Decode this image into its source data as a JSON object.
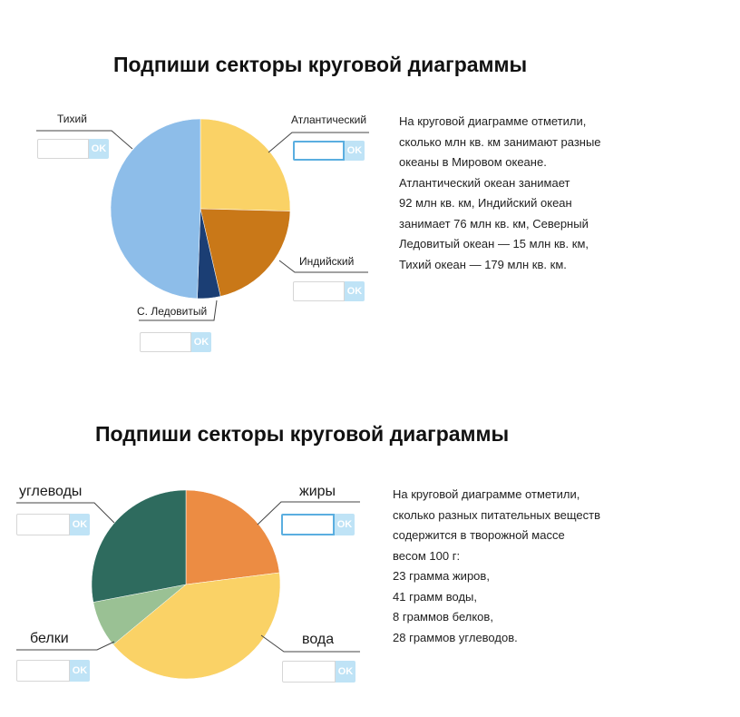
{
  "tasks": [
    {
      "title": "Подпиши секторы круговой диаграммы",
      "labels": {
        "pacific": "Тихий",
        "atlantic": "Атлантический",
        "indian": "Индийский",
        "arctic": "С. Ледовитый"
      },
      "ok_label": "OK",
      "description_lines": [
        "На круговой диаграмме отметили,",
        "сколько млн кв. км занимают разные",
        "океаны в Мировом океане.",
        "Атлантический океан занимает",
        "92 млн кв. км, Индийский океан",
        "занимает 76 млн кв. км, Северный",
        "Ледовитый океан — 15 млн кв. км,",
        "Тихий океан — 179 млн кв. км."
      ]
    },
    {
      "title": "Подпиши секторы круговой диаграммы",
      "labels": {
        "carbs": "углеводы",
        "fats": "жиры",
        "proteins": "белки",
        "water": "вода"
      },
      "ok_label": "OK",
      "description_lines": [
        "На круговой диаграмме отметили,",
        "сколько разных питательных веществ",
        "содержится в творожной массе",
        "весом 100 г:",
        "23 грамма жиров,",
        "41 грамм воды,",
        "8 граммов белков,",
        "28 граммов углеводов."
      ]
    }
  ],
  "chart_data": [
    {
      "type": "pie",
      "slices": [
        {
          "value": 92,
          "color": "#fad266"
        },
        {
          "value": 76,
          "color": "#c97818"
        },
        {
          "value": 15,
          "color": "#1b3e74"
        },
        {
          "value": 179,
          "color": "#8dbde9"
        }
      ]
    },
    {
      "type": "pie",
      "slices": [
        {
          "value": 23,
          "color": "#ec8c43"
        },
        {
          "value": 41,
          "color": "#fad266"
        },
        {
          "value": 8,
          "color": "#9ac194"
        },
        {
          "value": 28,
          "color": "#2e6b5e"
        }
      ]
    }
  ]
}
